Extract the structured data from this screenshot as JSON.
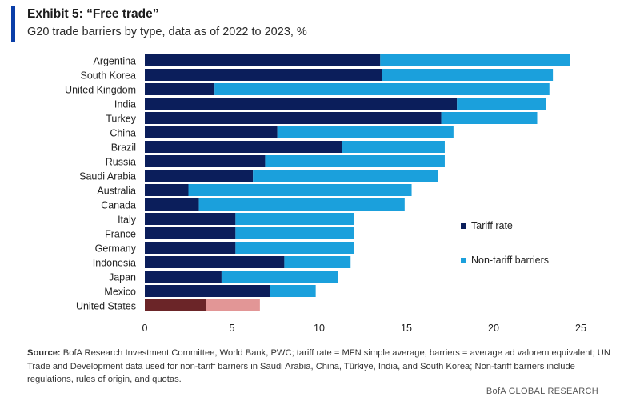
{
  "header": {
    "title": "Exhibit 5: “Free trade”",
    "subtitle": "G20 trade barriers by type, data as of 2022 to 2023, %"
  },
  "chart_data": {
    "type": "bar",
    "orientation": "horizontal",
    "stacked": true,
    "categories": [
      "Argentina",
      "South Korea",
      "United Kingdom",
      "India",
      "Turkey",
      "China",
      "Brazil",
      "Russia",
      "Saudi Arabia",
      "Australia",
      "Canada",
      "Italy",
      "France",
      "Germany",
      "Indonesia",
      "Japan",
      "Mexico",
      "United States"
    ],
    "series": [
      {
        "name": "Tariff rate",
        "color": "#0b1e5b",
        "values": [
          13.5,
          13.6,
          4.0,
          17.9,
          17.0,
          7.6,
          11.3,
          6.9,
          6.2,
          2.5,
          3.1,
          5.2,
          5.2,
          5.2,
          8.0,
          4.4,
          7.2,
          3.5
        ]
      },
      {
        "name": "Non-tariff barriers",
        "color": "#1ba0dc",
        "values": [
          10.9,
          9.8,
          19.2,
          5.1,
          5.5,
          10.1,
          5.9,
          10.3,
          10.6,
          12.8,
          11.8,
          6.8,
          6.8,
          6.8,
          3.8,
          6.7,
          2.6,
          3.1
        ]
      }
    ],
    "highlight": {
      "category": "United States",
      "colors": [
        "#6b2528",
        "#e29696"
      ]
    },
    "xlim": [
      0,
      25
    ],
    "xticks": [
      "0",
      "5",
      "10",
      "15",
      "20",
      "25"
    ],
    "grid": false,
    "legend": "right"
  },
  "source": {
    "label": "Source:",
    "text": " BofA Research Investment Committee, World Bank, PWC; tariff rate = MFN simple average, barriers = average ad valorem equivalent; UN Trade and Development data used for non-tariff barriers in Saudi Arabia, China, Türkiye, India, and South Korea; Non-tariff barriers include regulations, rules of origin, and quotas."
  },
  "branding": "BofA GLOBAL RESEARCH"
}
